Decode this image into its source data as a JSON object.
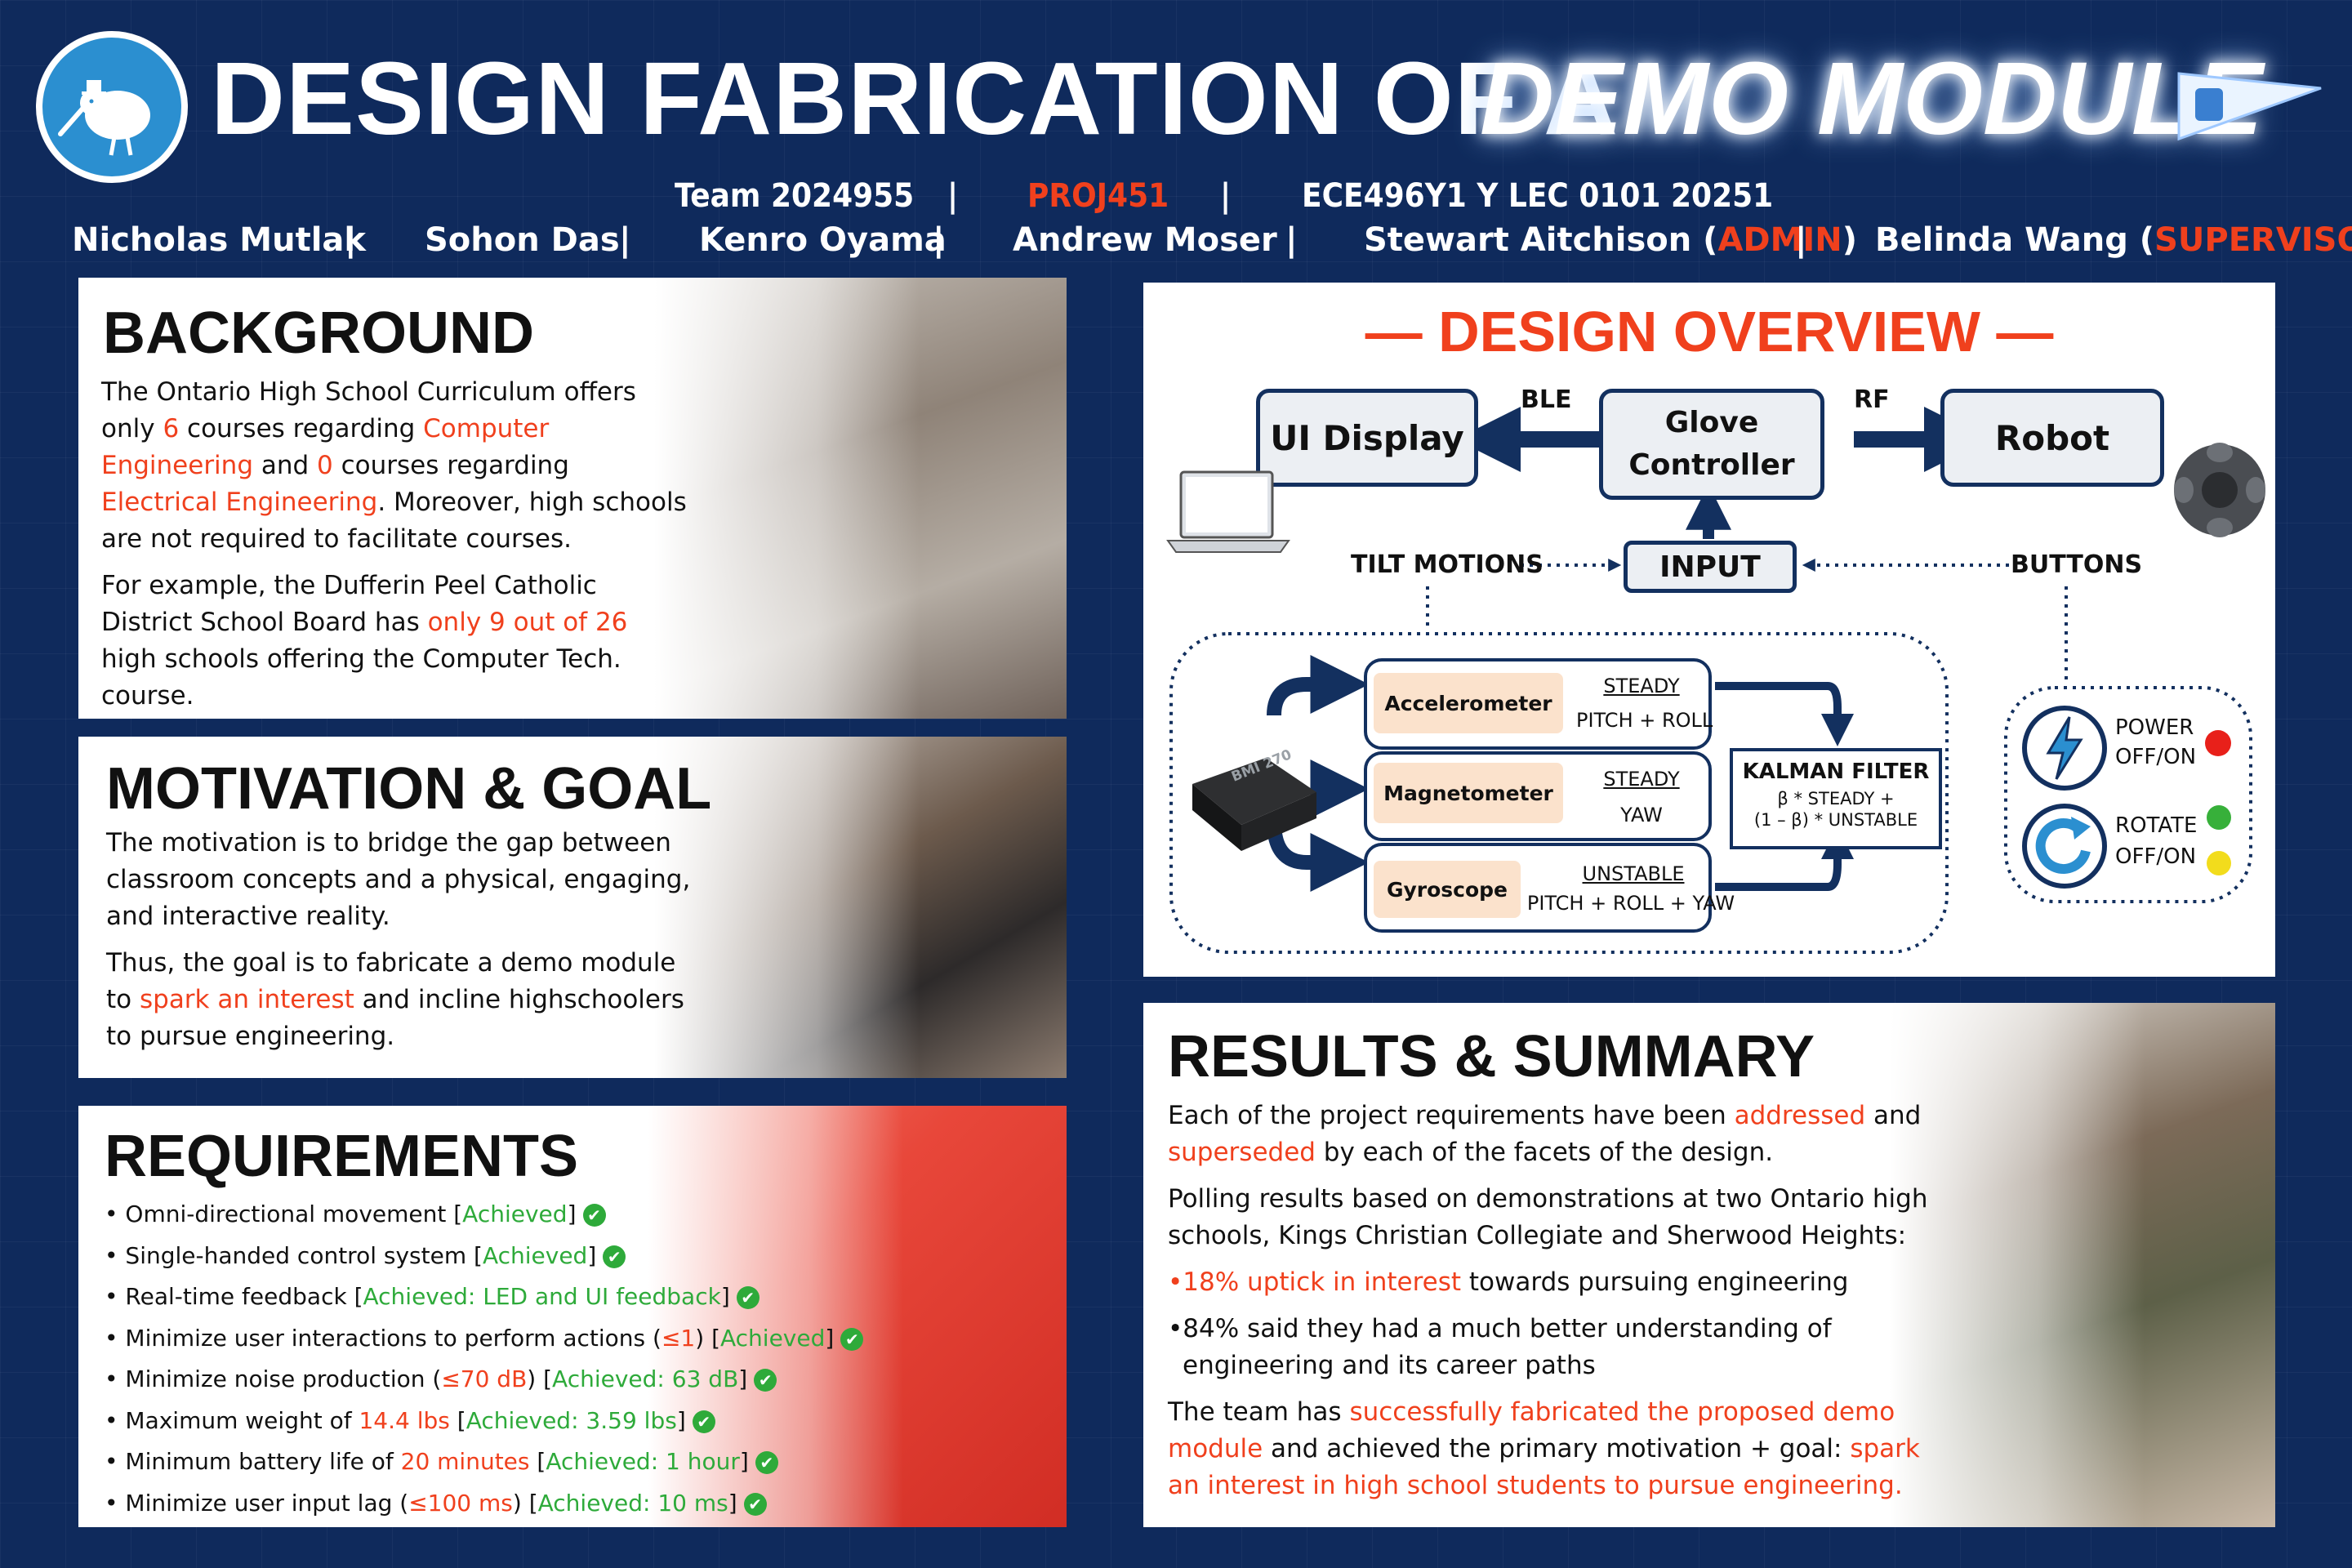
{
  "header": {
    "title_main": "DESIGN FABRICATION OF A",
    "title_accent": "DEMO MODULE",
    "team": "Team 2024955",
    "project": "PROJ451",
    "course": "ECE496Y1 Y LEC 0101 20251",
    "members": [
      "Nicholas Mutlak",
      "Sohon Das",
      "Kenro Oyama",
      "Andrew Moser"
    ],
    "admin_name": "Stewart Aitchison",
    "admin_role": "ADMIN",
    "supervisor_name": "Belinda Wang",
    "supervisor_role": "SUPERVISOR"
  },
  "background": {
    "title": "BACKGROUND",
    "p1_a": "The Ontario High School Curriculum offers only ",
    "p1_b": "6",
    "p1_c": " courses regarding ",
    "p1_d": "Computer Engineering",
    "p1_e": " and ",
    "p1_f": "0",
    "p1_g": " courses regarding ",
    "p1_h": "Electrical Engineering",
    "p1_i": ". Moreover, high schools are not required to facilitate courses.",
    "p2_a": "For example, the Dufferin Peel Catholic District School Board has ",
    "p2_b": "only 9 out of 26",
    "p2_c": " high schools offering the Computer Tech. course."
  },
  "motivation": {
    "title": "MOTIVATION & GOAL",
    "p1": "The motivation is to bridge the gap between classroom concepts and a physical, engaging, and interactive reality.",
    "p2_a": "Thus, the goal is to fabricate a demo module to ",
    "p2_b": "spark an interest",
    "p2_c": " and incline highschoolers to pursue engineering."
  },
  "requirements": {
    "title": "REQUIREMENTS",
    "items": [
      {
        "pre": "Omni-directional movement [",
        "red": "",
        "mid": "",
        "status": "Achieved",
        "post": "]"
      },
      {
        "pre": "Single-handed control system [",
        "red": "",
        "mid": "",
        "status": "Achieved",
        "post": "]"
      },
      {
        "pre": "Real-time feedback [",
        "red": "",
        "mid": "",
        "status": "Achieved: LED and UI feedback",
        "post": "]"
      },
      {
        "pre": "Minimize user interactions to perform actions (",
        "red": "≤1",
        "mid": ") [",
        "status": "Achieved",
        "post": "]"
      },
      {
        "pre": "Minimize noise production (",
        "red": "≤70 dB",
        "mid": ") [",
        "status": "Achieved: 63 dB",
        "post": "]"
      },
      {
        "pre": "Maximum weight of ",
        "red": "14.4 lbs",
        "mid": " [",
        "status": "Achieved: 3.59 lbs",
        "post": "]"
      },
      {
        "pre": "Minimum battery life of ",
        "red": "20 minutes",
        "mid": " [",
        "status": "Achieved: 1 hour",
        "post": "]"
      },
      {
        "pre": "Minimize user input lag (",
        "red": "≤100 ms",
        "mid": ") [",
        "status": "Achieved: 10 ms",
        "post": "]"
      }
    ]
  },
  "overview": {
    "title": "— DESIGN OVERVIEW —",
    "ui_display": "UI Display",
    "glove_controller": "Glove Controller",
    "robot": "Robot",
    "ble": "BLE",
    "rf": "RF",
    "input": "INPUT",
    "tilt_motions": "TILT MOTIONS",
    "buttons": "BUTTONS",
    "accelerometer": "Accelerometer",
    "magnetometer": "Magnetometer",
    "gyroscope": "Gyroscope",
    "acc_steady": "STEADY",
    "acc_axes": "PITCH + ROLL",
    "mag_steady": "STEADY",
    "mag_axes": "YAW",
    "gyro_unstable": "UNSTABLE",
    "gyro_axes": "PITCH + ROLL + YAW",
    "kalman_title": "KALMAN FILTER",
    "kalman_l1": "β * STEADY +",
    "kalman_l2": "(1 – β) * UNSTABLE",
    "chip_label": "BMI 270",
    "power_l1": "POWER",
    "power_l2": "OFF/ON",
    "rotate_l1": "ROTATE",
    "rotate_l2": "OFF/ON",
    "colors": {
      "navy": "#13305f",
      "red_led": "#e8201a",
      "green_led": "#37b03a",
      "yellow_led": "#f2dc1c"
    }
  },
  "results": {
    "title": "RESULTS & SUMMARY",
    "p1_a": "Each of the project requirements have been ",
    "p1_b": "addressed",
    "p1_c": " and ",
    "p1_d": "superseded",
    "p1_e": " by each of the facets of the design.",
    "p2": "Polling results based on demonstrations at two Ontario high schools, Kings Christian Collegiate and Sherwood Heights:",
    "b1_a": "18% uptick in interest",
    "b1_b": " towards pursuing engineering",
    "b2": "84% said they had a much better understanding of engineering and its career paths",
    "p3_a": "The team has ",
    "p3_b": "successfully fabricated the proposed demo module",
    "p3_c": " and achieved the primary motivation + goal: ",
    "p3_d": "spark an interest in high school students to pursue engineering."
  }
}
